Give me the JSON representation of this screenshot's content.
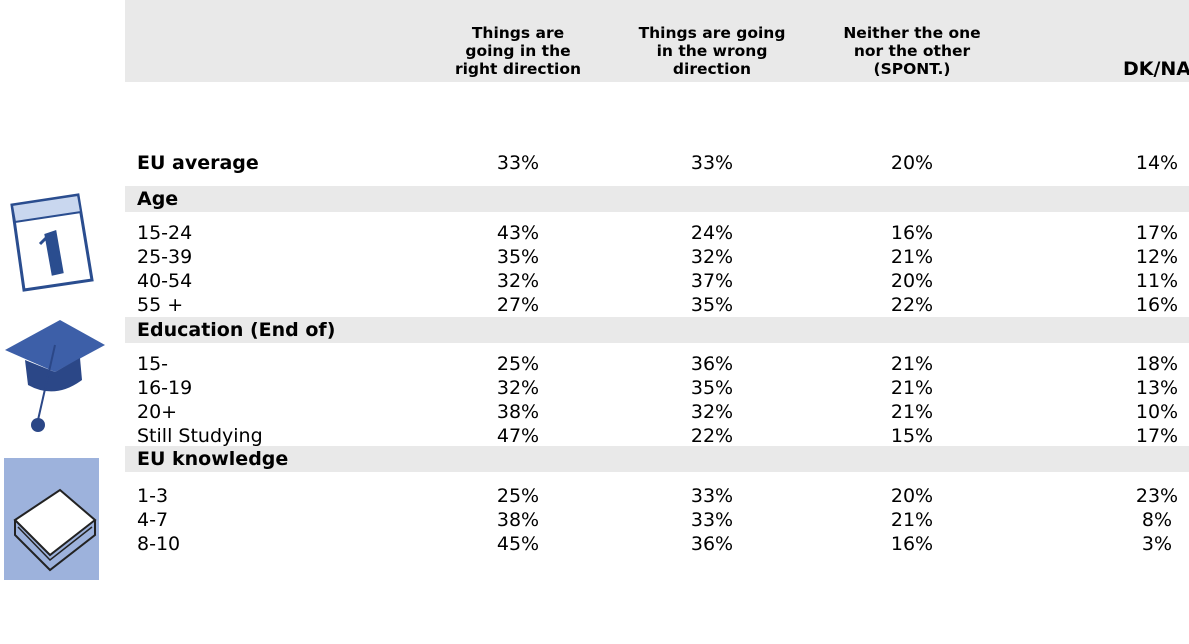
{
  "header": {
    "columns": [
      [
        "Things are",
        "going in the",
        "right direction"
      ],
      [
        "Things are going",
        "in the wrong",
        "direction"
      ],
      [
        "Neither the one",
        "nor the other",
        "(SPONT.)"
      ],
      [
        "DK/NA"
      ]
    ]
  },
  "summary": {
    "label": "EU average",
    "values": [
      "33%",
      "33%",
      "20%",
      "14%"
    ]
  },
  "sections": [
    {
      "title": "Age",
      "rows": [
        {
          "label": "15-24",
          "values": [
            "43%",
            "24%",
            "16%",
            "17%"
          ]
        },
        {
          "label": "25-39",
          "values": [
            "35%",
            "32%",
            "21%",
            "12%"
          ]
        },
        {
          "label": "40-54",
          "values": [
            "32%",
            "37%",
            "20%",
            "11%"
          ]
        },
        {
          "label": "55 +",
          "values": [
            "27%",
            "35%",
            "22%",
            "16%"
          ]
        }
      ]
    },
    {
      "title": "Education (End of)",
      "rows": [
        {
          "label": "15-",
          "values": [
            "25%",
            "36%",
            "21%",
            "18%"
          ]
        },
        {
          "label": "16-19",
          "values": [
            "32%",
            "35%",
            "21%",
            "13%"
          ]
        },
        {
          "label": "20+",
          "values": [
            "38%",
            "32%",
            "21%",
            "10%"
          ]
        },
        {
          "label": "Still Studying",
          "values": [
            "47%",
            "22%",
            "15%",
            "17%"
          ]
        }
      ]
    },
    {
      "title": "EU knowledge",
      "rows": [
        {
          "label": "1-3",
          "values": [
            "25%",
            "33%",
            "20%",
            "23%"
          ]
        },
        {
          "label": "4-7",
          "values": [
            "38%",
            "33%",
            "21%",
            "8%"
          ]
        },
        {
          "label": "8-10",
          "values": [
            "45%",
            "36%",
            "16%",
            "3%"
          ]
        }
      ]
    }
  ]
}
